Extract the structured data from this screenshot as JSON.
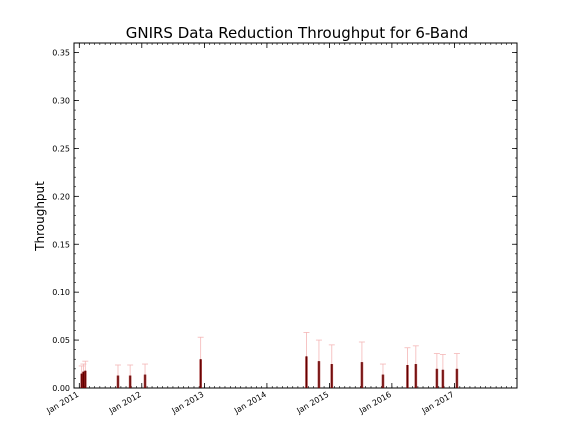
{
  "chart_data": {
    "type": "scatter",
    "title": "GNIRS Data Reduction Throughput for 6-Band",
    "xlabel": "",
    "ylabel": "Throughput",
    "xlim": [
      "2010-12-01",
      "2018-01-01"
    ],
    "ylim": [
      0,
      0.36
    ],
    "y_ticks": [
      0.0,
      0.05,
      0.1,
      0.15,
      0.2,
      0.25,
      0.3,
      0.35
    ],
    "y_tick_labels": [
      "0.00",
      "0.05",
      "0.10",
      "0.15",
      "0.20",
      "0.25",
      "0.30",
      "0.35"
    ],
    "x_ticks": [
      "2011-01-01",
      "2012-01-01",
      "2013-01-01",
      "2014-01-01",
      "2015-01-01",
      "2016-01-01",
      "2017-01-01"
    ],
    "x_tick_labels": [
      "Jan 2011",
      "Jan 2012",
      "Jan 2013",
      "Jan 2014",
      "Jan 2015",
      "Jan 2016",
      "Jan 2017"
    ],
    "grid": false,
    "colors": {
      "point": "#8b0000",
      "errorbar": "#f4b6b6",
      "axis": "#000000"
    },
    "points": [
      {
        "date": "2011-01-15",
        "y": 0.015,
        "err": 0.008
      },
      {
        "date": "2011-01-25",
        "y": 0.017,
        "err": 0.008
      },
      {
        "date": "2011-02-05",
        "y": 0.018,
        "err": 0.01
      },
      {
        "date": "2011-08-15",
        "y": 0.013,
        "err": 0.011
      },
      {
        "date": "2011-10-25",
        "y": 0.013,
        "err": 0.011
      },
      {
        "date": "2012-01-20",
        "y": 0.014,
        "err": 0.011
      },
      {
        "date": "2012-12-10",
        "y": 0.03,
        "err": 0.023
      },
      {
        "date": "2014-08-20",
        "y": 0.033,
        "err": 0.025
      },
      {
        "date": "2014-11-01",
        "y": 0.028,
        "err": 0.022
      },
      {
        "date": "2015-01-15",
        "y": 0.025,
        "err": 0.02
      },
      {
        "date": "2015-07-10",
        "y": 0.027,
        "err": 0.021
      },
      {
        "date": "2015-11-10",
        "y": 0.014,
        "err": 0.011
      },
      {
        "date": "2016-04-01",
        "y": 0.024,
        "err": 0.018
      },
      {
        "date": "2016-05-20",
        "y": 0.025,
        "err": 0.019
      },
      {
        "date": "2016-09-20",
        "y": 0.02,
        "err": 0.016
      },
      {
        "date": "2016-10-25",
        "y": 0.019,
        "err": 0.016
      },
      {
        "date": "2017-01-15",
        "y": 0.02,
        "err": 0.016
      }
    ]
  }
}
